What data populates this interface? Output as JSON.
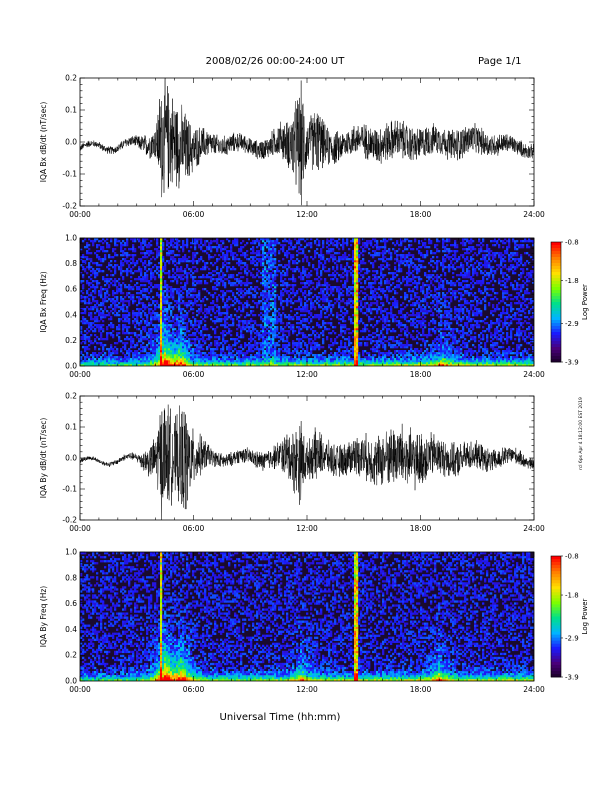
{
  "header": {
    "title": "2008/02/26  00:00-24:00 UT",
    "page": "Page 1/1"
  },
  "side_text": "rcl 6ps Apr 4 18:12:00 EST 2019",
  "xaxis_title": "Universal Time (hh:mm)",
  "colors": {
    "trace": "#000000",
    "spectrogram_background": "#1a0a2e",
    "colormap": [
      "#150020",
      "#4a007a",
      "#1a1aff",
      "#00b4ff",
      "#00e08a",
      "#7cff00",
      "#ffe000",
      "#ff8000",
      "#ff0000"
    ]
  },
  "chart_data": [
    {
      "type": "line",
      "title": "",
      "ylabel": "IQA Bx dB/dt (nT/sec)",
      "xlabel": "",
      "xlim": [
        "00:00",
        "24:00"
      ],
      "ylim": [
        -0.2,
        0.2
      ],
      "x_ticks": [
        "00:00",
        "06:00",
        "12:00",
        "18:00",
        "24:00"
      ],
      "y_ticks": [
        "-0.2",
        "-0.1",
        "0.0",
        "0.1",
        "0.2"
      ],
      "grid": false,
      "x_hours": [
        0,
        1,
        2,
        3,
        4,
        4.3,
        4.6,
        5.0,
        5.5,
        6,
        7,
        8,
        9,
        10,
        10.5,
        11,
        11.7,
        12,
        12.5,
        13,
        14,
        15,
        16,
        17,
        18,
        19,
        20,
        21,
        22,
        23,
        24
      ],
      "envelope": [
        0.012,
        0.012,
        0.015,
        0.02,
        0.06,
        0.22,
        0.2,
        0.16,
        0.14,
        0.08,
        0.04,
        0.035,
        0.03,
        0.04,
        0.06,
        0.08,
        0.22,
        0.08,
        0.12,
        0.07,
        0.05,
        0.06,
        0.07,
        0.07,
        0.06,
        0.05,
        0.06,
        0.05,
        0.04,
        0.03,
        0.025
      ],
      "baseline": [
        -0.02,
        -0.01,
        -0.02,
        0.0,
        0.0,
        0.0,
        0.0,
        0.0,
        -0.01,
        -0.02,
        -0.01,
        0.0,
        -0.02,
        -0.01,
        0.0,
        -0.01,
        0.0,
        0.0,
        0.0,
        -0.02,
        0.0,
        0.0,
        0.0,
        0.0,
        0.0,
        0.0,
        0.0,
        0.0,
        0.0,
        -0.02,
        -0.02
      ]
    },
    {
      "type": "heatmap",
      "title": "",
      "ylabel": "IQA Bx Freq (Hz)",
      "xlabel": "",
      "xlim": [
        "00:00",
        "24:00"
      ],
      "ylim": [
        0.0,
        1.0
      ],
      "x_ticks": [
        "00:00",
        "06:00",
        "12:00",
        "18:00",
        "24:00"
      ],
      "y_ticks": [
        "0.0",
        "0.2",
        "0.4",
        "0.6",
        "0.8",
        "1.0"
      ],
      "colorbar_label": "Log Power",
      "colorbar_ticks": [
        "-0.8",
        "-1.8",
        "-2.9",
        "-3.9"
      ],
      "colorbar_range": [
        -3.9,
        -0.8
      ],
      "features": [
        {
          "hour": 4.3,
          "kind": "vertical-streak",
          "strength": 0.6
        },
        {
          "hour": 4.5,
          "kind": "burst",
          "strength": 0.85
        },
        {
          "hour": 5.3,
          "kind": "burst",
          "strength": 0.5
        },
        {
          "hour": 10.0,
          "kind": "vertical-band",
          "strength": 0.25
        },
        {
          "hour": 14.6,
          "kind": "vertical-streak",
          "strength": 0.7
        },
        {
          "hour": 19.2,
          "kind": "burst",
          "strength": 0.3
        }
      ]
    },
    {
      "type": "line",
      "title": "",
      "ylabel": "IQA By dB/dt (nT/sec)",
      "xlabel": "",
      "xlim": [
        "00:00",
        "24:00"
      ],
      "ylim": [
        -0.2,
        0.2
      ],
      "x_ticks": [
        "00:00",
        "06:00",
        "12:00",
        "18:00",
        "24:00"
      ],
      "y_ticks": [
        "-0.2",
        "-0.1",
        "0.0",
        "0.1",
        "0.2"
      ],
      "grid": false,
      "x_hours": [
        0,
        1,
        2,
        3,
        4,
        4.3,
        4.6,
        5.0,
        5.5,
        6,
        7,
        8,
        9,
        10,
        10.5,
        11,
        11.7,
        12,
        12.5,
        13,
        14,
        15,
        16,
        17,
        18,
        19,
        20,
        21,
        22,
        23,
        24
      ],
      "envelope": [
        0.008,
        0.008,
        0.01,
        0.015,
        0.08,
        0.22,
        0.2,
        0.14,
        0.22,
        0.1,
        0.03,
        0.025,
        0.03,
        0.04,
        0.05,
        0.09,
        0.16,
        0.06,
        0.1,
        0.06,
        0.06,
        0.08,
        0.1,
        0.12,
        0.1,
        0.07,
        0.06,
        0.05,
        0.04,
        0.03,
        0.02
      ],
      "baseline": [
        -0.01,
        -0.01,
        -0.01,
        0.0,
        0.0,
        0.0,
        0.0,
        0.0,
        0.0,
        0.0,
        0.0,
        0.0,
        0.0,
        0.0,
        0.0,
        0.0,
        0.0,
        0.0,
        0.0,
        0.0,
        0.0,
        0.0,
        0.0,
        0.0,
        0.0,
        0.0,
        0.0,
        0.0,
        0.0,
        0.0,
        -0.01
      ]
    },
    {
      "type": "heatmap",
      "title": "",
      "ylabel": "IQA By Freq (Hz)",
      "xlabel": "Universal Time (hh:mm)",
      "xlim": [
        "00:00",
        "24:00"
      ],
      "ylim": [
        0.0,
        1.0
      ],
      "x_ticks": [
        "00:00",
        "06:00",
        "12:00",
        "18:00",
        "24:00"
      ],
      "y_ticks": [
        "0.0",
        "0.2",
        "0.4",
        "0.6",
        "0.8",
        "1.0"
      ],
      "colorbar_label": "Log Power",
      "colorbar_ticks": [
        "-0.8",
        "-1.8",
        "-2.9",
        "-3.9"
      ],
      "colorbar_range": [
        -3.9,
        -0.8
      ],
      "features": [
        {
          "hour": 4.3,
          "kind": "vertical-streak",
          "strength": 0.6
        },
        {
          "hour": 4.5,
          "kind": "burst",
          "strength": 0.9
        },
        {
          "hour": 5.4,
          "kind": "burst",
          "strength": 0.7
        },
        {
          "hour": 11.7,
          "kind": "burst",
          "strength": 0.35
        },
        {
          "hour": 14.6,
          "kind": "vertical-streak",
          "strength": 0.7
        },
        {
          "hour": 19.0,
          "kind": "burst",
          "strength": 0.4
        }
      ]
    }
  ]
}
